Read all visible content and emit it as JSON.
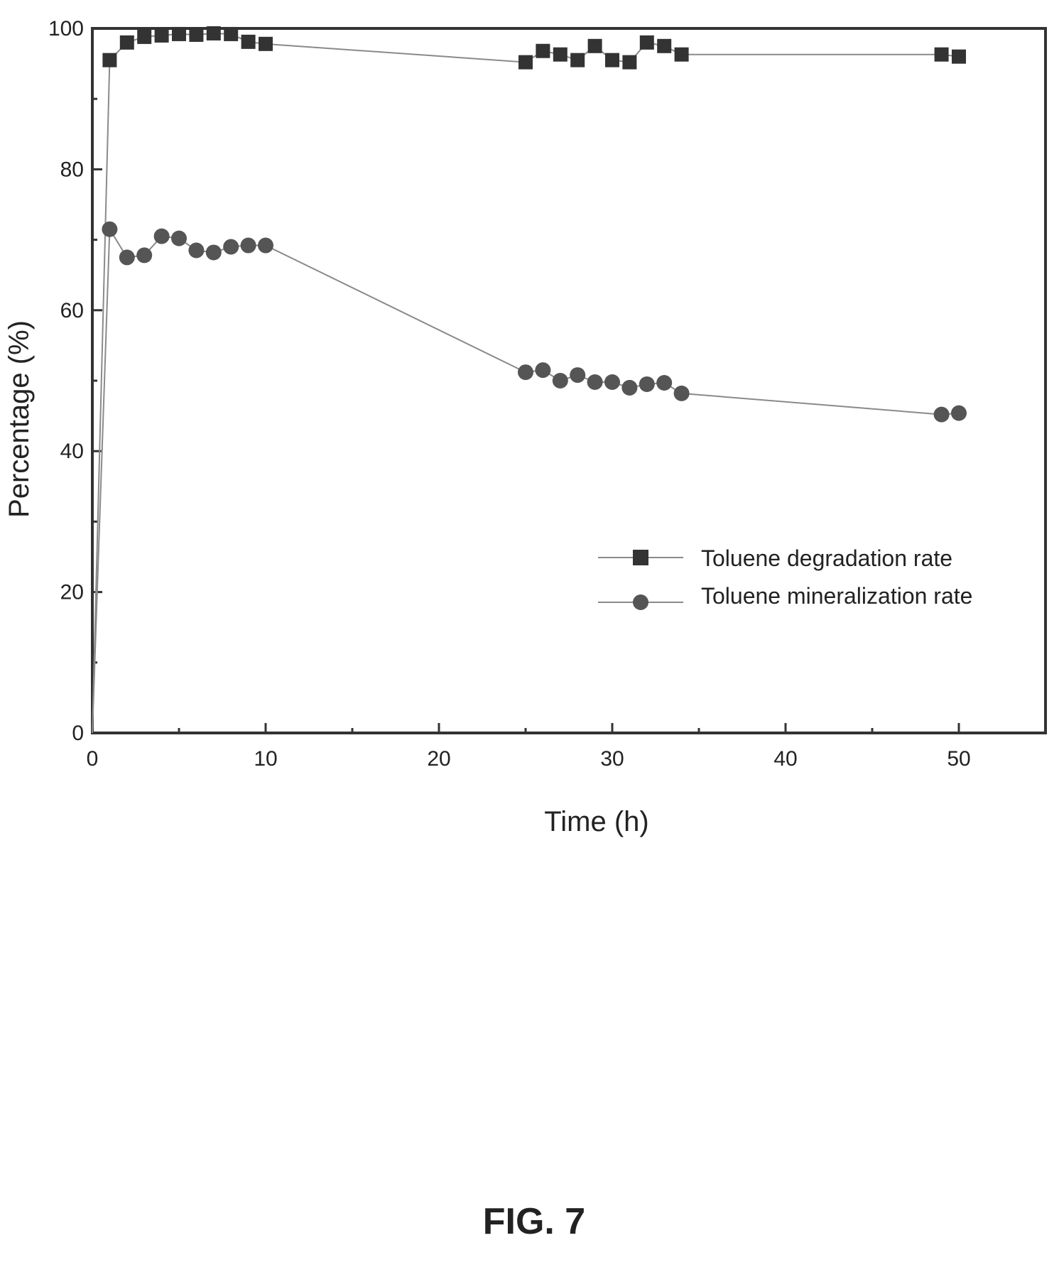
{
  "figure_caption": "FIG. 7",
  "chart_data": {
    "type": "line",
    "title": "",
    "xlabel": "Time (h)",
    "ylabel": "Percentage (%)",
    "xlim": [
      0,
      55
    ],
    "ylim": [
      0,
      100
    ],
    "xticks": [
      0,
      10,
      20,
      30,
      40,
      50
    ],
    "yticks": [
      0,
      20,
      40,
      60,
      80,
      100
    ],
    "grid": false,
    "legend_position": "right",
    "series": [
      {
        "name": "Toluene degradation rate",
        "marker": "square",
        "color": "#333333",
        "x": [
          0,
          1,
          2,
          3,
          4,
          5,
          6,
          7,
          8,
          9,
          10,
          25,
          26,
          27,
          28,
          29,
          30,
          31,
          32,
          33,
          34,
          49,
          50
        ],
        "y": [
          0,
          95.5,
          98.0,
          98.8,
          99.0,
          99.2,
          99.1,
          99.3,
          99.2,
          98.1,
          97.8,
          95.2,
          96.8,
          96.3,
          95.5,
          97.5,
          95.5,
          95.2,
          98.0,
          97.5,
          96.3,
          96.3,
          96.0
        ]
      },
      {
        "name": "Toluene mineralization rate",
        "marker": "circle",
        "color": "#555555",
        "x": [
          0,
          1,
          2,
          3,
          4,
          5,
          6,
          7,
          8,
          9,
          10,
          25,
          26,
          27,
          28,
          29,
          30,
          31,
          32,
          33,
          34,
          49,
          50
        ],
        "y": [
          0,
          71.5,
          67.5,
          67.8,
          70.5,
          70.2,
          68.5,
          68.2,
          69.0,
          69.2,
          69.2,
          51.2,
          51.5,
          50.0,
          50.8,
          49.8,
          49.8,
          49.0,
          49.5,
          49.7,
          48.2,
          45.2,
          45.4
        ]
      }
    ]
  }
}
